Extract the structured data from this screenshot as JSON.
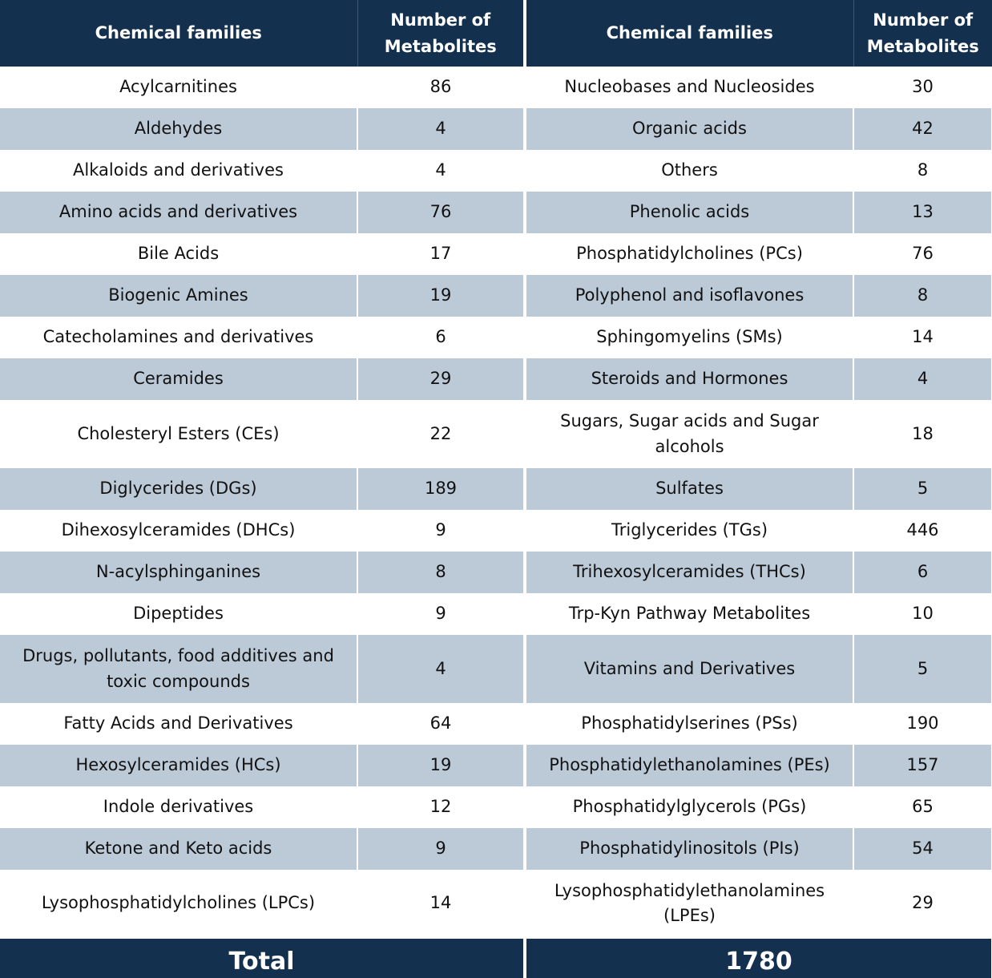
{
  "table": {
    "header": [
      "Chemical families",
      "Number of Metabolites",
      "Chemical families",
      "Number of Metabolites"
    ],
    "rows": [
      [
        "Acylcarnitines",
        86,
        "Nucleobases and Nucleosides",
        30
      ],
      [
        "Aldehydes",
        4,
        "Organic acids",
        42
      ],
      [
        "Alkaloids and derivatives",
        4,
        "Others",
        8
      ],
      [
        "Amino acids and derivatives",
        76,
        "Phenolic acids",
        13
      ],
      [
        "Bile Acids",
        17,
        "Phosphatidylcholines (PCs)",
        76
      ],
      [
        "Biogenic Amines",
        19,
        "Polyphenol and isoflavones",
        8
      ],
      [
        "Catecholamines and derivatives",
        6,
        "Sphingomyelins (SMs)",
        14
      ],
      [
        "Ceramides",
        29,
        "Steroids and Hormones",
        4
      ],
      [
        "Cholesteryl Esters (CEs)",
        22,
        "Sugars, Sugar acids and Sugar alcohols",
        18
      ],
      [
        "Diglycerides (DGs)",
        189,
        "Sulfates",
        5
      ],
      [
        "Dihexosylceramides (DHCs)",
        9,
        "Triglycerides (TGs)",
        446
      ],
      [
        "N-acylsphinganines",
        8,
        "Trihexosylceramides (THCs)",
        6
      ],
      [
        "Dipeptides",
        9,
        "Trp-Kyn Pathway Metabolites",
        10
      ],
      [
        "Drugs, pollutants, food additives and toxic compounds",
        4,
        "Vitamins and Derivatives",
        5
      ],
      [
        "Fatty Acids and Derivatives",
        64,
        "Phosphatidylserines (PSs)",
        190
      ],
      [
        "Hexosylceramides (HCs)",
        19,
        "Phosphatidylethanolamines (PEs)",
        157
      ],
      [
        "Indole derivatives",
        12,
        "Phosphatidylglycerols (PGs)",
        65
      ],
      [
        "Ketone and Keto acids",
        9,
        "Phosphatidylinositols (PIs)",
        54
      ],
      [
        "Lysophosphatidylcholines (LPCs)",
        14,
        "Lysophosphatidylethanolamines (LPEs)",
        29
      ]
    ],
    "total": {
      "label": "Total",
      "value": 1780
    }
  }
}
